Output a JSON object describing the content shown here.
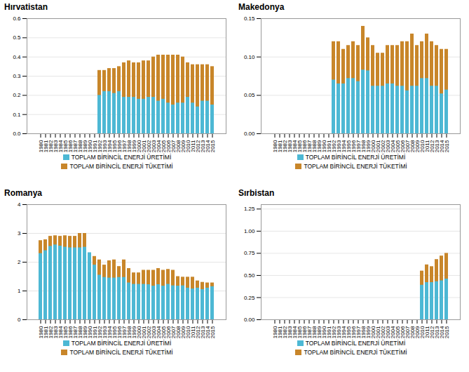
{
  "chart_data": [
    {
      "type": "bar",
      "title": "Hırvatistan",
      "categories": [
        1980,
        1981,
        1982,
        1983,
        1984,
        1985,
        1986,
        1987,
        1988,
        1989,
        1990,
        1991,
        1992,
        1993,
        1994,
        1995,
        1996,
        1997,
        1998,
        1999,
        2000,
        2001,
        2002,
        2003,
        2004,
        2005,
        2006,
        2007,
        2008,
        2009,
        2010,
        2011,
        2012,
        2013,
        2014,
        2015
      ],
      "series": [
        {
          "name": "TOPLAМ BİRİNCİL ENERJİ ÜRETİMİ",
          "color": "#4db8d4",
          "values": [
            0,
            0,
            0,
            0,
            0,
            0,
            0,
            0,
            0,
            0,
            0,
            0,
            0.2,
            0.22,
            0.22,
            0.21,
            0.22,
            0.19,
            0.19,
            0.19,
            0.18,
            0.18,
            0.19,
            0.19,
            0.17,
            0.18,
            0.16,
            0.15,
            0.16,
            0.16,
            0.19,
            0.16,
            0.14,
            0.17,
            0.17,
            0.15
          ]
        },
        {
          "name": "TOPLAМ BİRİNCİL ENERJİ TÜKETİMİ",
          "color": "#c8862a",
          "values": [
            0,
            0,
            0,
            0,
            0,
            0,
            0,
            0,
            0,
            0,
            0,
            0,
            0.33,
            0.33,
            0.34,
            0.34,
            0.35,
            0.37,
            0.38,
            0.37,
            0.37,
            0.38,
            0.38,
            0.4,
            0.41,
            0.41,
            0.41,
            0.41,
            0.41,
            0.4,
            0.37,
            0.36,
            0.36,
            0.36,
            0.36,
            0.35
          ]
        }
      ],
      "ylim": [
        0,
        0.6
      ],
      "yticks": [
        {
          "value": 0,
          "label": "0.0"
        },
        0.1,
        0.2,
        0.3,
        0.4,
        0.5,
        0.6
      ],
      "grid": true,
      "legend": "bottom",
      "stacked": false
    },
    {
      "type": "bar",
      "title": "Makedonya",
      "categories": [
        1980,
        1981,
        1982,
        1983,
        1984,
        1985,
        1986,
        1987,
        1988,
        1989,
        1990,
        1991,
        1992,
        1993,
        1994,
        1995,
        1996,
        1997,
        1998,
        1999,
        2000,
        2001,
        2002,
        2003,
        2004,
        2005,
        2006,
        2007,
        2008,
        2009,
        2010,
        2011,
        2012,
        2013,
        2014,
        2015
      ],
      "series": [
        {
          "name": "TOPLAM BİRİNCİL ENERJİ ÜRETİMİ",
          "color": "#4db8d4",
          "values": [
            0,
            0,
            0,
            0,
            0,
            0,
            0,
            0,
            0,
            0,
            0,
            0,
            0.07,
            0.065,
            0.065,
            0.072,
            0.072,
            0.068,
            0.083,
            0.082,
            0.062,
            0.062,
            0.062,
            0.065,
            0.065,
            0.062,
            0.062,
            0.056,
            0.062,
            0.062,
            0.072,
            0.072,
            0.062,
            0.062,
            0.052,
            0.057
          ]
        },
        {
          "name": "TOPLAM BİRİNCİL ENERJİ TÜKETİMİ",
          "color": "#c8862a",
          "values": [
            0,
            0,
            0,
            0,
            0,
            0,
            0,
            0,
            0,
            0,
            0,
            0,
            0.12,
            0.12,
            0.11,
            0.115,
            0.12,
            0.115,
            0.14,
            0.125,
            0.115,
            0.105,
            0.105,
            0.115,
            0.115,
            0.115,
            0.12,
            0.12,
            0.13,
            0.115,
            0.12,
            0.13,
            0.12,
            0.115,
            0.11,
            0.11
          ]
        }
      ],
      "ylim": [
        0,
        0.15
      ],
      "yticks": [
        {
          "value": 0,
          "label": "0.00"
        },
        0.05,
        {
          "value": 0.1,
          "label": "0.10"
        },
        {
          "value": 0.15,
          "label": "0.15"
        }
      ],
      "grid": true,
      "legend": "bottom",
      "stacked": false
    },
    {
      "type": "bar",
      "title": "Romanya",
      "categories": [
        1980,
        1981,
        1982,
        1983,
        1984,
        1985,
        1986,
        1987,
        1988,
        1989,
        1990,
        1991,
        1992,
        1993,
        1994,
        1995,
        1996,
        1997,
        1998,
        1999,
        2000,
        2001,
        2002,
        2003,
        2004,
        2005,
        2006,
        2007,
        2008,
        2009,
        2010,
        2011,
        2012,
        2013,
        2014,
        2015
      ],
      "series": [
        {
          "name": "TOPLAM BİRİNCİL ENERJİ ÜRETİMİ",
          "color": "#4db8d4",
          "values": [
            2.3,
            2.4,
            2.55,
            2.6,
            2.56,
            2.52,
            2.5,
            2.5,
            2.5,
            2.52,
            2.33,
            1.9,
            1.55,
            1.47,
            1.45,
            1.45,
            1.47,
            1.47,
            1.28,
            1.23,
            1.23,
            1.23,
            1.22,
            1.17,
            1.22,
            1.17,
            1.23,
            1.18,
            1.17,
            1.18,
            1.1,
            1.07,
            1.1,
            1.05,
            1.1,
            1.15
          ]
        },
        {
          "name": "TOPLAM BİRİNCİL ENERJİ TÜKETİMİ",
          "color": "#c8862a",
          "values": [
            2.75,
            2.78,
            2.9,
            2.92,
            2.9,
            2.92,
            2.9,
            2.9,
            3.0,
            3.0,
            2.28,
            2.2,
            2.08,
            1.9,
            2.05,
            2.08,
            1.85,
            2.08,
            1.78,
            1.63,
            1.63,
            1.72,
            1.72,
            1.72,
            1.78,
            1.72,
            1.75,
            1.72,
            1.5,
            1.48,
            1.48,
            1.48,
            1.35,
            1.3,
            1.28,
            1.28
          ]
        }
      ],
      "ylim": [
        0,
        4
      ],
      "yticks": [
        0,
        1,
        2,
        3,
        4
      ],
      "grid": true,
      "legend": "bottom",
      "stacked": false
    },
    {
      "type": "bar",
      "title": "Sırbistan",
      "categories": [
        1980,
        1981,
        1982,
        1983,
        1984,
        1985,
        1986,
        1987,
        1988,
        1989,
        1990,
        1991,
        1992,
        1993,
        1994,
        1995,
        1996,
        1997,
        1998,
        1999,
        2000,
        2001,
        2002,
        2003,
        2004,
        2005,
        2006,
        2007,
        2008,
        2009,
        2010,
        2011,
        2012,
        2013,
        2014,
        2015
      ],
      "series": [
        {
          "name": "TOPLAM BİRİNCİL ENERJİ ÜRETİMİ",
          "color": "#4db8d4",
          "values": [
            0,
            0,
            0,
            0,
            0,
            0,
            0,
            0,
            0,
            0,
            0,
            0,
            0,
            0,
            0,
            0,
            0,
            0,
            0,
            0,
            0,
            0,
            0,
            0,
            0,
            0,
            0,
            0,
            0,
            0,
            0.39,
            0.42,
            0.42,
            0.43,
            0.44,
            0.46
          ]
        },
        {
          "name": "TOPLAM BİRİNCİL ENERJİ TÜKETİMİ",
          "color": "#c8862a",
          "values": [
            0,
            0,
            0,
            0,
            0,
            0,
            0,
            0,
            0,
            0,
            0,
            0,
            0,
            0,
            0,
            0,
            0,
            0,
            0,
            0,
            0,
            0,
            0,
            0,
            0,
            0,
            0,
            0,
            0,
            0,
            0.55,
            0.62,
            0.6,
            0.68,
            0.72,
            0.75
          ]
        }
      ],
      "ylim": [
        0,
        1.3
      ],
      "yticks": [
        {
          "value": 0,
          "label": "0.00"
        },
        0.25,
        {
          "value": 0.5,
          "label": "0.50"
        },
        0.75,
        {
          "value": 1,
          "label": "1.00"
        },
        1.25
      ],
      "grid": true,
      "legend": "bottom",
      "stacked": false
    }
  ]
}
